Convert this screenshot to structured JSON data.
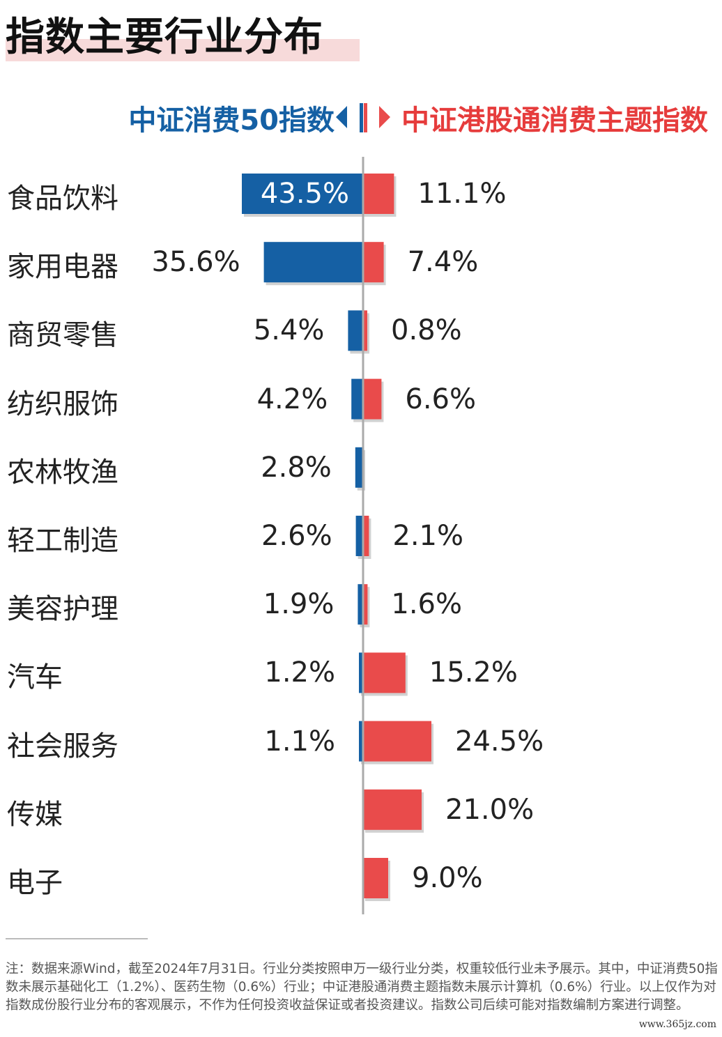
{
  "title": "指数主要行业分布",
  "legend": {
    "left_label": "中证消费50指数",
    "right_label": "中证港股通消费主题指数"
  },
  "colors": {
    "left_series": "#1560a4",
    "right_series": "#e94b4b",
    "axis": "#aaaaaa",
    "title_highlight": "#f7dada"
  },
  "chart_data": {
    "type": "bar",
    "orientation": "horizontal-diverging",
    "categories": [
      "食品饮料",
      "家用电器",
      "商贸零售",
      "纺织服饰",
      "农林牧渔",
      "轻工制造",
      "美容护理",
      "汽车",
      "社会服务",
      "传媒",
      "电子"
    ],
    "series": [
      {
        "name": "中证消费50指数",
        "side": "left",
        "values": [
          43.5,
          35.6,
          5.4,
          4.2,
          2.8,
          2.6,
          1.9,
          1.2,
          1.1,
          null,
          null
        ],
        "labels": [
          "43.5%",
          "35.6%",
          "5.4%",
          "4.2%",
          "2.8%",
          "2.6%",
          "1.9%",
          "1.2%",
          "1.1%",
          "",
          ""
        ]
      },
      {
        "name": "中证港股通消费主题指数",
        "side": "right",
        "values": [
          11.1,
          7.4,
          0.8,
          6.6,
          null,
          2.1,
          1.6,
          15.2,
          24.5,
          21.0,
          9.0
        ],
        "labels": [
          "11.1%",
          "7.4%",
          "0.8%",
          "6.6%",
          "",
          "2.1%",
          "1.6%",
          "15.2%",
          "24.5%",
          "21.0%",
          "9.0%"
        ]
      }
    ],
    "unit": "%"
  },
  "footnote": "注：数据来源Wind，截至2024年7月31日。行业分类按照申万一级行业分类，权重较低行业未予展示。其中，中证消费50指数未展示基础化工（1.2%）、医药生物（0.6%）行业；中证港股通消费主题指数未展示计算机（0.6%）行业。以上仅作为对指数成份股行业分布的客观展示，不作为任何投资收益保证或者投资建议。指数公司后续可能对指数编制方案进行调整。",
  "watermark": "www.365jz.com"
}
